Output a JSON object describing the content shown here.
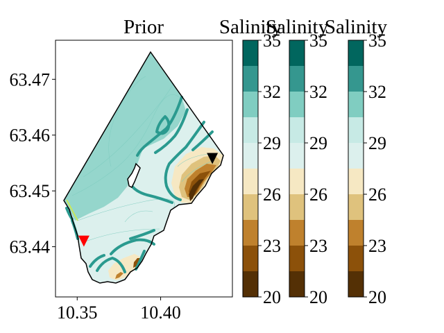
{
  "chart_data": {
    "type": "contour-map",
    "title": "Prior",
    "xlabel": "",
    "ylabel": "",
    "xlim": [
      10.337,
      10.443
    ],
    "ylim": [
      63.431,
      63.477
    ],
    "xticks": [
      10.35,
      10.4
    ],
    "xtick_labels": [
      "10.35",
      "10.40"
    ],
    "yticks": [
      63.44,
      63.45,
      63.46,
      63.47
    ],
    "ytick_labels": [
      "63.44",
      "63.45",
      "63.46",
      "63.47"
    ],
    "markers": [
      {
        "name": "red-triangle",
        "x": 10.354,
        "y": 63.441,
        "color": "#ff0000"
      },
      {
        "name": "black-triangle",
        "x": 10.431,
        "y": 63.4558,
        "color": "#000000"
      }
    ],
    "colorbars": [
      {
        "label": "Salinity",
        "min": 20,
        "max": 35,
        "ticks": [
          20,
          23,
          26,
          29,
          32,
          35
        ],
        "tick_labels": [
          "20",
          "23",
          "26",
          "29",
          "32",
          "35"
        ]
      },
      {
        "label": "Salinity",
        "min": 20,
        "max": 35,
        "ticks": [
          20,
          23,
          26,
          29,
          32,
          35
        ],
        "tick_labels": [
          "20",
          "23",
          "26",
          "29",
          "32",
          "35"
        ]
      },
      {
        "label": "Salinity",
        "min": 20,
        "max": 35,
        "ticks": [
          20,
          23,
          26,
          29,
          32,
          35
        ],
        "tick_labels": [
          "20",
          "23",
          "26",
          "29",
          "32",
          "35"
        ]
      }
    ],
    "colormap": [
      "#543005",
      "#8c510a",
      "#bf812d",
      "#dfc27d",
      "#f6e8c3",
      "#dcf0ed",
      "#c7eae5",
      "#80cdc1",
      "#35978f",
      "#01665e",
      "#003c30"
    ],
    "colormap_levels": [
      20,
      21.5,
      23,
      24.5,
      26,
      27.5,
      29,
      30.5,
      32,
      33.5,
      35
    ]
  }
}
